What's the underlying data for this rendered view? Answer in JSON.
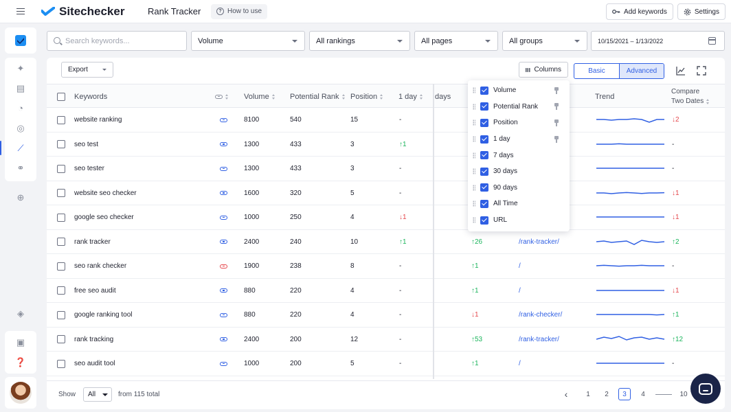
{
  "header": {
    "brand": "Sitechecker",
    "page_title": "Rank Tracker",
    "how_to_use": "How to use",
    "add_keywords": "Add keywords",
    "settings": "Settings"
  },
  "filters": {
    "search_placeholder": "Search keywords...",
    "volume": "Volume",
    "rankings": "All rankings",
    "pages": "All pages",
    "groups": "All groups",
    "date_range": "10/15/2021 – 1/13/2022"
  },
  "toolbar": {
    "export": "Export",
    "columns": "Columns",
    "basic": "Basic",
    "advanced": "Advanced"
  },
  "table": {
    "headers": {
      "keywords": "Keywords",
      "volume": "Volume",
      "potential_rank": "Potential Rank",
      "position": "Position",
      "one_day": "1 day",
      "days_partial": "days",
      "trend": "Trend",
      "compare_line1": "Compare",
      "compare_line2": "Two Dates"
    },
    "rows": [
      {
        "keyword": "website ranking",
        "link": "blue",
        "volume": "8100",
        "potential": "540",
        "position": "15",
        "day": "-",
        "day_dir": "none",
        "days30": "",
        "days30_dir": "none",
        "url": "",
        "compare": "2",
        "compare_dir": "down",
        "trend": [
          0,
          0,
          -0.5,
          0,
          0,
          0.5,
          0,
          -2,
          0,
          0
        ]
      },
      {
        "keyword": "seo test",
        "link": "blue",
        "volume": "1300",
        "potential": "433",
        "position": "3",
        "day": "1",
        "day_dir": "up",
        "days30": "",
        "days30_dir": "none",
        "url": "",
        "compare": "-",
        "compare_dir": "none",
        "trend": [
          0,
          0,
          0,
          0.3,
          0,
          0,
          0,
          0,
          0,
          0
        ]
      },
      {
        "keyword": "seo tester",
        "link": "blue",
        "volume": "1300",
        "potential": "433",
        "position": "3",
        "day": "-",
        "day_dir": "none",
        "days30": "",
        "days30_dir": "none",
        "url": "",
        "compare": "-",
        "compare_dir": "none",
        "trend": [
          0,
          0,
          0,
          0,
          0,
          0,
          0,
          0,
          0,
          0
        ]
      },
      {
        "keyword": "website seo checker",
        "link": "blue",
        "volume": "1600",
        "potential": "320",
        "position": "5",
        "day": "-",
        "day_dir": "none",
        "days30": "",
        "days30_dir": "none",
        "url": "",
        "compare": "1",
        "compare_dir": "down",
        "trend": [
          0,
          0,
          -0.5,
          0,
          0.3,
          0,
          -0.4,
          0,
          0,
          0.2
        ]
      },
      {
        "keyword": "google seo checker",
        "link": "blue",
        "volume": "1000",
        "potential": "250",
        "position": "4",
        "day": "1",
        "day_dir": "down",
        "days30": "",
        "days30_dir": "none",
        "url": "",
        "compare": "1",
        "compare_dir": "down",
        "trend": [
          0,
          0,
          0,
          0,
          0,
          0,
          0,
          0,
          0,
          0
        ]
      },
      {
        "keyword": "rank tracker",
        "link": "blue",
        "volume": "2400",
        "potential": "240",
        "position": "10",
        "day": "1",
        "day_dir": "up",
        "days30": "26",
        "days30_dir": "up",
        "url": "/rank-tracker/",
        "compare": "2",
        "compare_dir": "up",
        "trend": [
          0,
          0.5,
          -0.5,
          0,
          0.5,
          -2,
          1,
          0,
          -0.5,
          0
        ]
      },
      {
        "keyword": "seo rank checker",
        "link": "red",
        "volume": "1900",
        "potential": "238",
        "position": "8",
        "day": "-",
        "day_dir": "none",
        "days30": "1",
        "days30_dir": "up",
        "url": "/",
        "compare": "-",
        "compare_dir": "none",
        "trend": [
          0,
          0.3,
          0,
          -0.3,
          0,
          0,
          0.3,
          0,
          0,
          0
        ]
      },
      {
        "keyword": "free seo audit",
        "link": "blue",
        "volume": "880",
        "potential": "220",
        "position": "4",
        "day": "-",
        "day_dir": "none",
        "days30": "1",
        "days30_dir": "up",
        "url": "/",
        "compare": "1",
        "compare_dir": "down",
        "trend": [
          0,
          0,
          0,
          0,
          0,
          0,
          0,
          0,
          0,
          0
        ]
      },
      {
        "keyword": "google ranking tool",
        "link": "blue",
        "volume": "880",
        "potential": "220",
        "position": "4",
        "day": "-",
        "day_dir": "none",
        "days30": "1",
        "days30_dir": "down",
        "url": "/rank-checker/",
        "compare": "1",
        "compare_dir": "up",
        "trend": [
          0,
          0,
          0,
          0,
          0,
          0,
          0,
          0,
          -0.3,
          0
        ]
      },
      {
        "keyword": "rank tracking",
        "link": "blue",
        "volume": "2400",
        "potential": "200",
        "position": "12",
        "day": "-",
        "day_dir": "none",
        "days30": "53",
        "days30_dir": "up",
        "url": "/rank-tracker/",
        "compare": "12",
        "compare_dir": "up",
        "trend": [
          0,
          1.5,
          0.5,
          2,
          -0.5,
          1,
          1.5,
          0,
          1,
          0
        ]
      },
      {
        "keyword": "seo audit tool",
        "link": "blue",
        "volume": "1000",
        "potential": "200",
        "position": "5",
        "day": "-",
        "day_dir": "none",
        "days30": "1",
        "days30_dir": "up",
        "url": "/",
        "compare": "-",
        "compare_dir": "none",
        "trend": [
          0,
          0,
          0,
          0,
          0,
          0,
          0,
          0,
          0,
          0
        ]
      }
    ]
  },
  "columns_menu": [
    {
      "label": "Volume",
      "pinned": true
    },
    {
      "label": "Potential Rank",
      "pinned": true
    },
    {
      "label": "Position",
      "pinned": true
    },
    {
      "label": "1 day",
      "pinned": true
    },
    {
      "label": "7 days",
      "pinned": false
    },
    {
      "label": "30 days",
      "pinned": false
    },
    {
      "label": "90 days",
      "pinned": false
    },
    {
      "label": "All Time",
      "pinned": false
    },
    {
      "label": "URL",
      "pinned": false
    }
  ],
  "footer": {
    "show": "Show",
    "page_size": "All",
    "total": "from 115 total",
    "pages": [
      "1",
      "2",
      "3",
      "4",
      "10"
    ],
    "current_page": "3"
  },
  "colors": {
    "accent": "#2f5fe3",
    "up": "#1bb55c",
    "down": "#e5484d",
    "brand_dark": "#1a2448"
  }
}
